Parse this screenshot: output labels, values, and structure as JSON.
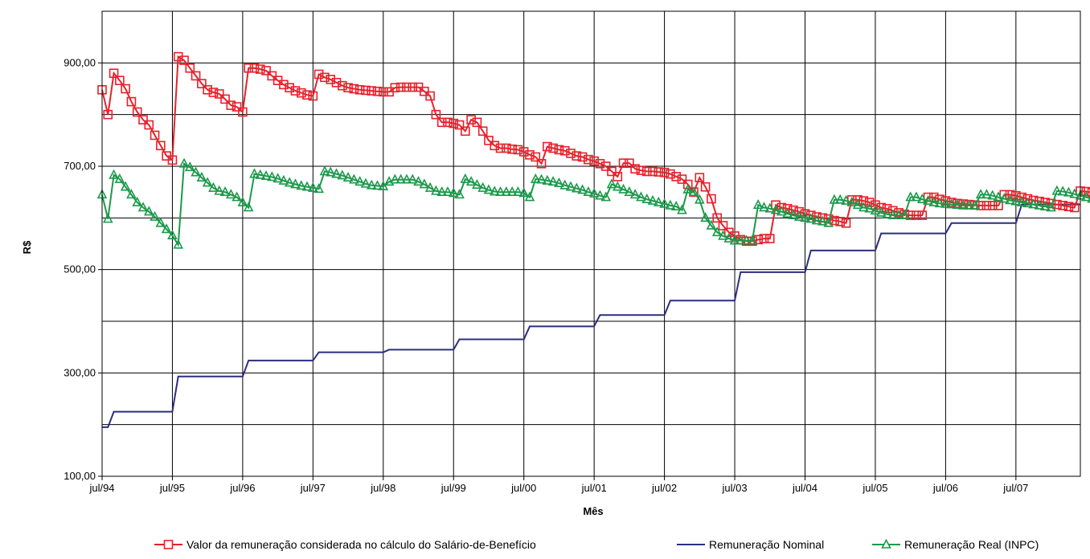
{
  "chart_data": {
    "type": "line",
    "title": "",
    "xlabel": "Mês",
    "ylabel": "R$",
    "ylim": [
      100,
      1000
    ],
    "y_ticks": [
      "100,00",
      "300,00",
      "500,00",
      "700,00",
      "900,00"
    ],
    "x_ticks": [
      "jul/94",
      "jul/95",
      "jul/96",
      "jul/97",
      "jul/98",
      "jul/99",
      "jul/00",
      "jul/01",
      "jul/02",
      "jul/03",
      "jul/04",
      "jul/05",
      "jul/06",
      "jul/07"
    ],
    "x_range_months": [
      "jul/94",
      "mai/08"
    ],
    "grid": true,
    "legend_position": "bottom",
    "series": [
      {
        "name": "Valor da remuneração considerada no cálculo do Salário-de-Benefício",
        "color": "#e8202a",
        "marker": "square",
        "values": [
          848,
          800,
          880,
          866,
          850,
          825,
          805,
          790,
          780,
          760,
          740,
          720,
          712,
          912,
          905,
          890,
          875,
          860,
          848,
          843,
          840,
          830,
          818,
          815,
          805,
          890,
          890,
          888,
          885,
          875,
          866,
          858,
          852,
          846,
          842,
          838,
          836,
          878,
          872,
          868,
          862,
          856,
          852,
          850,
          848,
          847,
          846,
          845,
          844,
          844,
          852,
          853,
          853,
          853,
          853,
          845,
          836,
          800,
          785,
          785,
          783,
          780,
          768,
          790,
          785,
          768,
          750,
          740,
          735,
          735,
          733,
          732,
          728,
          722,
          718,
          705,
          738,
          735,
          732,
          730,
          725,
          720,
          718,
          713,
          710,
          705,
          700,
          690,
          680,
          706,
          706,
          695,
          692,
          690,
          690,
          689,
          688,
          685,
          680,
          675,
          665,
          650,
          678,
          660,
          637,
          600,
          585,
          572,
          565,
          558,
          555,
          555,
          558,
          560,
          560,
          625,
          620,
          618,
          615,
          612,
          608,
          605,
          602,
          600,
          598,
          595,
          593,
          590,
          635,
          635,
          633,
          630,
          625,
          620,
          618,
          614,
          610,
          607,
          605,
          605,
          605,
          640,
          640,
          636,
          633,
          630,
          628,
          627,
          626,
          625,
          624,
          624,
          624,
          624,
          645,
          645,
          643,
          640,
          637,
          634,
          632,
          630,
          628,
          626,
          624,
          622,
          620,
          652,
          651,
          649,
          646,
          643,
          640,
          637,
          634,
          632,
          630,
          628
        ]
      },
      {
        "name": "Remuneração Nominal",
        "color": "#2b2f7e",
        "marker": "none",
        "values": [
          195,
          195,
          225,
          225,
          225,
          225,
          225,
          225,
          225,
          225,
          225,
          225,
          225,
          293,
          293,
          293,
          293,
          293,
          293,
          293,
          293,
          293,
          293,
          293,
          293,
          324,
          324,
          324,
          324,
          324,
          324,
          324,
          324,
          324,
          324,
          324,
          324,
          340,
          340,
          340,
          340,
          340,
          340,
          340,
          340,
          340,
          340,
          340,
          340,
          345,
          345,
          345,
          345,
          345,
          345,
          345,
          345,
          345,
          345,
          345,
          345,
          365,
          365,
          365,
          365,
          365,
          365,
          365,
          365,
          365,
          365,
          365,
          365,
          390,
          390,
          390,
          390,
          390,
          390,
          390,
          390,
          390,
          390,
          390,
          390,
          412,
          412,
          412,
          412,
          412,
          412,
          412,
          412,
          412,
          412,
          412,
          412,
          440,
          440,
          440,
          440,
          440,
          440,
          440,
          440,
          440,
          440,
          440,
          440,
          495,
          495,
          495,
          495,
          495,
          495,
          495,
          495,
          495,
          495,
          495,
          495,
          537,
          537,
          537,
          537,
          537,
          537,
          537,
          537,
          537,
          537,
          537,
          537,
          570,
          570,
          570,
          570,
          570,
          570,
          570,
          570,
          570,
          570,
          570,
          570,
          590,
          590,
          590,
          590,
          590,
          590,
          590,
          590,
          590,
          590,
          590,
          590,
          626,
          626,
          626,
          626,
          626,
          626,
          626,
          626,
          626,
          626,
          626
        ]
      },
      {
        "name": "Remuneração Real (INPC)",
        "color": "#1a9a4a",
        "marker": "triangle",
        "values": [
          645,
          598,
          683,
          675,
          660,
          645,
          630,
          620,
          612,
          602,
          590,
          578,
          566,
          548,
          705,
          698,
          688,
          678,
          668,
          658,
          652,
          650,
          645,
          640,
          630,
          620,
          685,
          683,
          681,
          679,
          676,
          672,
          668,
          665,
          662,
          660,
          658,
          656,
          690,
          688,
          685,
          682,
          678,
          674,
          670,
          666,
          663,
          662,
          661,
          670,
          674,
          674,
          674,
          674,
          670,
          665,
          658,
          652,
          650,
          650,
          648,
          645,
          675,
          670,
          664,
          658,
          654,
          651,
          650,
          650,
          650,
          650,
          648,
          640,
          675,
          674,
          672,
          670,
          667,
          663,
          660,
          657,
          654,
          650,
          647,
          643,
          640,
          665,
          660,
          655,
          650,
          645,
          640,
          636,
          633,
          630,
          627,
          624,
          622,
          615,
          655,
          650,
          635,
          600,
          585,
          572,
          565,
          560,
          556,
          556,
          556,
          556,
          625,
          620,
          618,
          615,
          612,
          608,
          605,
          602,
          600,
          598,
          595,
          593,
          590,
          635,
          635,
          633,
          630,
          625,
          620,
          618,
          614,
          610,
          607,
          605,
          605,
          605,
          640,
          640,
          636,
          633,
          630,
          628,
          627,
          626,
          625,
          624,
          624,
          624,
          645,
          645,
          643,
          640,
          637,
          634,
          632,
          630,
          628,
          626,
          624,
          622,
          620,
          652,
          651,
          649,
          646,
          643,
          640,
          637,
          634,
          632,
          630,
          628
        ]
      }
    ]
  }
}
